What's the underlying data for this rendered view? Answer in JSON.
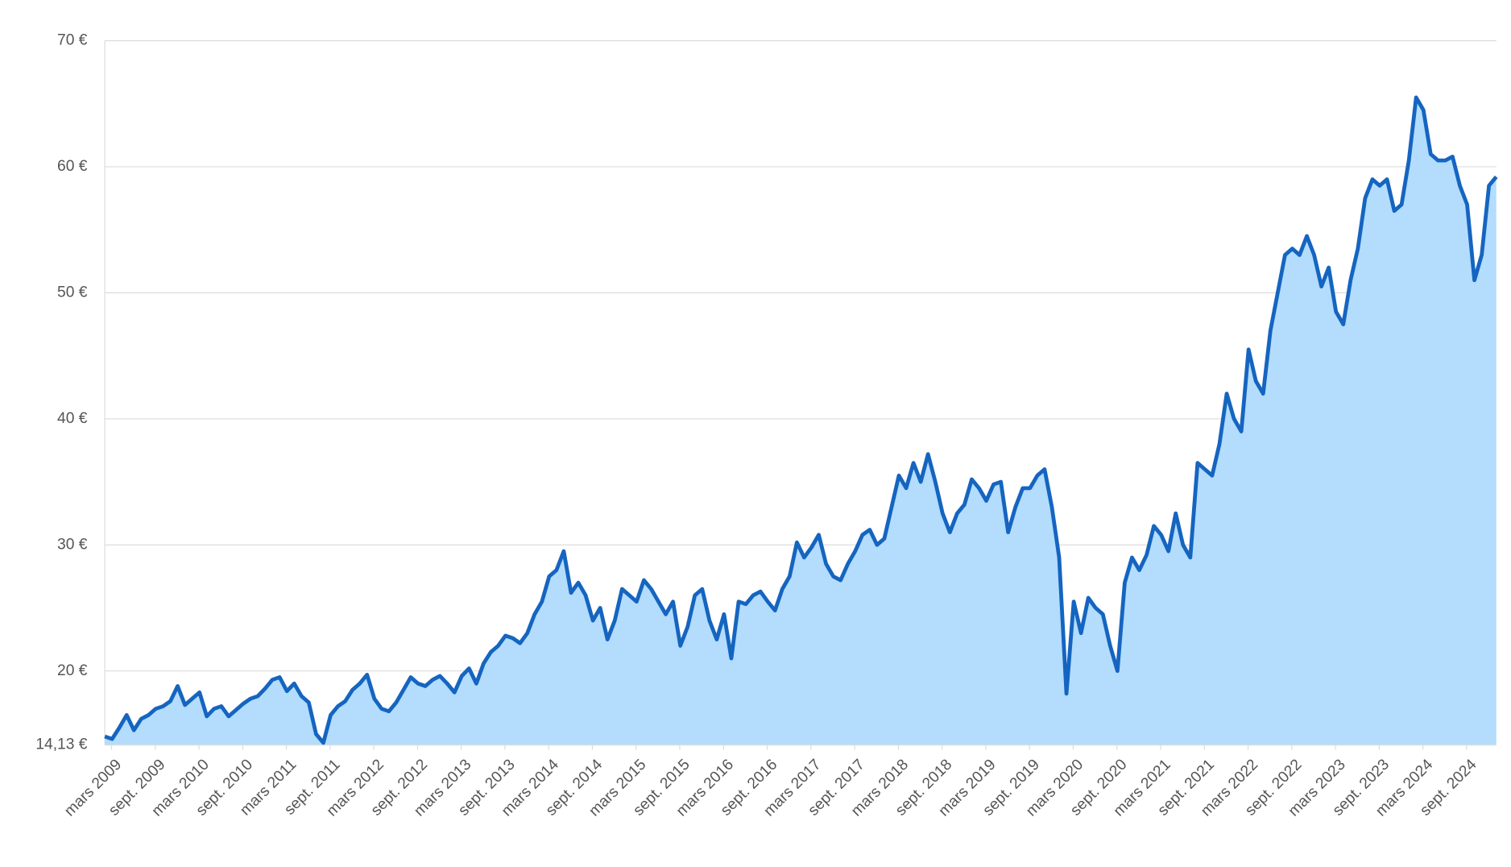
{
  "chart_data": {
    "type": "area",
    "x": [
      "2009-03",
      "2009-04",
      "2009-05",
      "2009-06",
      "2009-07",
      "2009-08",
      "2009-09",
      "2009-10",
      "2009-11",
      "2009-12",
      "2010-01",
      "2010-02",
      "2010-03",
      "2010-04",
      "2010-05",
      "2010-06",
      "2010-07",
      "2010-08",
      "2010-09",
      "2010-10",
      "2010-11",
      "2010-12",
      "2011-01",
      "2011-02",
      "2011-03",
      "2011-04",
      "2011-05",
      "2011-06",
      "2011-07",
      "2011-08",
      "2011-09",
      "2011-10",
      "2011-11",
      "2011-12",
      "2012-01",
      "2012-02",
      "2012-03",
      "2012-04",
      "2012-05",
      "2012-06",
      "2012-07",
      "2012-08",
      "2012-09",
      "2012-10",
      "2012-11",
      "2012-12",
      "2013-01",
      "2013-02",
      "2013-03",
      "2013-04",
      "2013-05",
      "2013-06",
      "2013-07",
      "2013-08",
      "2013-09",
      "2013-10",
      "2013-11",
      "2013-12",
      "2014-01",
      "2014-02",
      "2014-03",
      "2014-04",
      "2014-05",
      "2014-06",
      "2014-07",
      "2014-08",
      "2014-09",
      "2014-10",
      "2014-11",
      "2014-12",
      "2015-01",
      "2015-02",
      "2015-03",
      "2015-04",
      "2015-05",
      "2015-06",
      "2015-07",
      "2015-08",
      "2015-09",
      "2015-10",
      "2015-11",
      "2015-12",
      "2016-01",
      "2016-02",
      "2016-03",
      "2016-04",
      "2016-05",
      "2016-06",
      "2016-07",
      "2016-08",
      "2016-09",
      "2016-10",
      "2016-11",
      "2016-12",
      "2017-01",
      "2017-02",
      "2017-03",
      "2017-04",
      "2017-05",
      "2017-06",
      "2017-07",
      "2017-08",
      "2017-09",
      "2017-10",
      "2017-11",
      "2017-12",
      "2018-01",
      "2018-02",
      "2018-03",
      "2018-04",
      "2018-05",
      "2018-06",
      "2018-07",
      "2018-08",
      "2018-09",
      "2018-10",
      "2018-11",
      "2018-12",
      "2019-01",
      "2019-02",
      "2019-03",
      "2019-04",
      "2019-05",
      "2019-06",
      "2019-07",
      "2019-08",
      "2019-09",
      "2019-10",
      "2019-11",
      "2019-12",
      "2020-01",
      "2020-02",
      "2020-03",
      "2020-04",
      "2020-05",
      "2020-06",
      "2020-07",
      "2020-08",
      "2020-09",
      "2020-10",
      "2020-11",
      "2020-12",
      "2021-01",
      "2021-02",
      "2021-03",
      "2021-04",
      "2021-05",
      "2021-06",
      "2021-07",
      "2021-08",
      "2021-09",
      "2021-10",
      "2021-11",
      "2021-12",
      "2022-01",
      "2022-02",
      "2022-03",
      "2022-04",
      "2022-05",
      "2022-06",
      "2022-07",
      "2022-08",
      "2022-09",
      "2022-10",
      "2022-11",
      "2022-12",
      "2023-01",
      "2023-02",
      "2023-03",
      "2023-04",
      "2023-05",
      "2023-06",
      "2023-07",
      "2023-08",
      "2023-09",
      "2023-10",
      "2023-11",
      "2023-12",
      "2024-01",
      "2024-02",
      "2024-03",
      "2024-04",
      "2024-05",
      "2024-06",
      "2024-07",
      "2024-08",
      "2024-09",
      "2024-10",
      "2024-11",
      "2024-12",
      "2025-01",
      "2025-02"
    ],
    "series": [
      {
        "color": "#1565c0",
        "fill": "#b3dcfd",
        "values": [
          14.8,
          14.6,
          15.5,
          16.5,
          15.3,
          16.2,
          16.5,
          17.0,
          17.2,
          17.6,
          18.8,
          17.3,
          17.8,
          18.3,
          16.4,
          17.0,
          17.2,
          16.4,
          16.9,
          17.4,
          17.8,
          18.0,
          18.6,
          19.3,
          19.5,
          18.4,
          19.0,
          18.0,
          17.5,
          15.0,
          14.3,
          16.5,
          17.2,
          17.6,
          18.5,
          19.0,
          19.7,
          17.8,
          17.0,
          16.8,
          17.5,
          18.5,
          19.5,
          19.0,
          18.8,
          19.3,
          19.6,
          19.0,
          18.3,
          19.6,
          20.2,
          19.0,
          20.6,
          21.5,
          22.0,
          22.8,
          22.6,
          22.2,
          23.0,
          24.5,
          25.5,
          27.5,
          28.0,
          29.5,
          26.2,
          27.0,
          26.0,
          24.0,
          25.0,
          22.5,
          24.0,
          26.5,
          26.0,
          25.5,
          27.2,
          26.5,
          25.5,
          24.5,
          25.5,
          22.0,
          23.5,
          26.0,
          26.5,
          24.0,
          22.5,
          24.5,
          21.0,
          25.5,
          25.3,
          26.0,
          26.3,
          25.5,
          24.8,
          26.5,
          27.5,
          30.2,
          29.0,
          29.8,
          30.8,
          28.5,
          27.5,
          27.2,
          28.5,
          29.5,
          30.8,
          31.2,
          30.0,
          30.5,
          33.0,
          35.5,
          34.5,
          36.5,
          35.0,
          37.2,
          35.0,
          32.5,
          31.0,
          32.5,
          33.2,
          35.2,
          34.5,
          33.5,
          34.8,
          35.0,
          31.0,
          33.0,
          34.5,
          34.5,
          35.5,
          36.0,
          33.0,
          29.0,
          18.2,
          25.5,
          23.0,
          25.8,
          25.0,
          24.5,
          22.0,
          20.0,
          27.0,
          29.0,
          28.0,
          29.2,
          31.5,
          30.8,
          29.5,
          32.5,
          30.0,
          29.0,
          36.5,
          36.0,
          35.5,
          38.0,
          42.0,
          40.0,
          39.0,
          45.5,
          43.0,
          42.0,
          47.0,
          50.0,
          53.0,
          53.5,
          53.0,
          54.5,
          53.0,
          50.5,
          52.0,
          48.5,
          47.5,
          51.0,
          53.5,
          57.5,
          59.0,
          58.5,
          59.0,
          56.5,
          57.0,
          60.5,
          65.5,
          64.5,
          61.0,
          60.5,
          60.5,
          60.8,
          58.5,
          57.0,
          51.0,
          53.0,
          58.5,
          59.2
        ]
      }
    ],
    "ylim": [
      14.13,
      70
    ],
    "yticks": [
      {
        "value": 14.13,
        "label": "14,13 €"
      },
      {
        "value": 20,
        "label": "20 €"
      },
      {
        "value": 30,
        "label": "30 €"
      },
      {
        "value": 40,
        "label": "40 €"
      },
      {
        "value": 50,
        "label": "50 €"
      },
      {
        "value": 60,
        "label": "60 €"
      },
      {
        "value": 70,
        "label": "70 €"
      }
    ],
    "xticks": [
      {
        "value": "2009-03",
        "label": "mars 2009"
      },
      {
        "value": "2009-09",
        "label": "sept. 2009"
      },
      {
        "value": "2010-03",
        "label": "mars 2010"
      },
      {
        "value": "2010-09",
        "label": "sept. 2010"
      },
      {
        "value": "2011-03",
        "label": "mars 2011"
      },
      {
        "value": "2011-09",
        "label": "sept. 2011"
      },
      {
        "value": "2012-03",
        "label": "mars 2012"
      },
      {
        "value": "2012-09",
        "label": "sept. 2012"
      },
      {
        "value": "2013-03",
        "label": "mars 2013"
      },
      {
        "value": "2013-09",
        "label": "sept. 2013"
      },
      {
        "value": "2014-03",
        "label": "mars 2014"
      },
      {
        "value": "2014-09",
        "label": "sept. 2014"
      },
      {
        "value": "2015-03",
        "label": "mars 2015"
      },
      {
        "value": "2015-09",
        "label": "sept. 2015"
      },
      {
        "value": "2016-03",
        "label": "mars 2016"
      },
      {
        "value": "2016-09",
        "label": "sept. 2016"
      },
      {
        "value": "2017-03",
        "label": "mars 2017"
      },
      {
        "value": "2017-09",
        "label": "sept. 2017"
      },
      {
        "value": "2018-03",
        "label": "mars 2018"
      },
      {
        "value": "2018-09",
        "label": "sept. 2018"
      },
      {
        "value": "2019-03",
        "label": "mars 2019"
      },
      {
        "value": "2019-09",
        "label": "sept. 2019"
      },
      {
        "value": "2020-03",
        "label": "mars 2020"
      },
      {
        "value": "2020-09",
        "label": "sept. 2020"
      },
      {
        "value": "2021-03",
        "label": "mars 2021"
      },
      {
        "value": "2021-09",
        "label": "sept. 2021"
      },
      {
        "value": "2022-03",
        "label": "mars 2022"
      },
      {
        "value": "2022-09",
        "label": "sept. 2022"
      },
      {
        "value": "2023-03",
        "label": "mars 2023"
      },
      {
        "value": "2023-09",
        "label": "sept. 2023"
      },
      {
        "value": "2024-03",
        "label": "mars 2024"
      },
      {
        "value": "2024-09",
        "label": "sept. 2024"
      }
    ],
    "grid": true
  }
}
